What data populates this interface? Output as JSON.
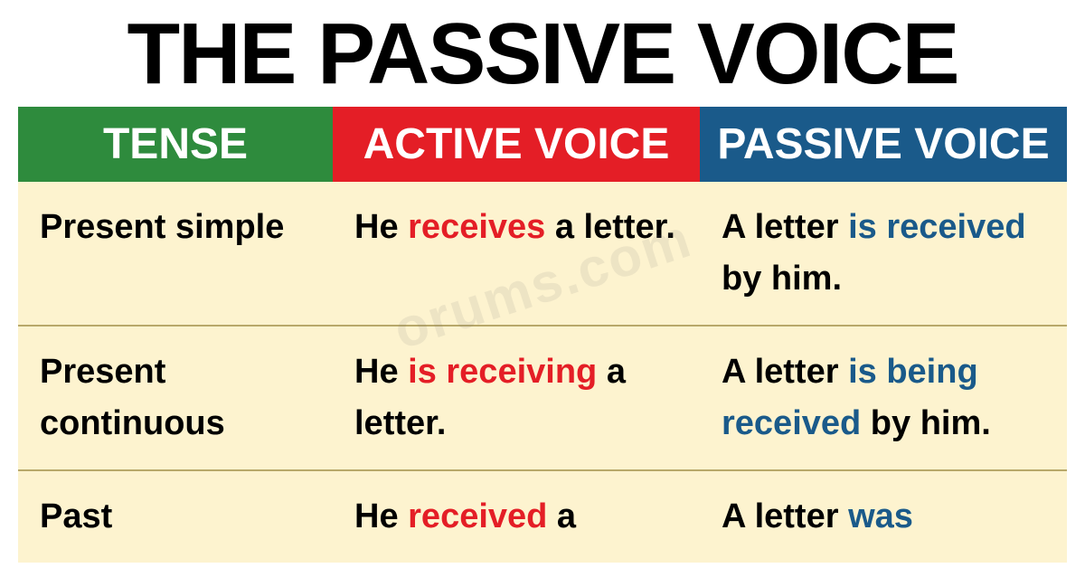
{
  "title": "THE PASSIVE VOICE",
  "headers": {
    "tense": "TENSE",
    "active": "ACTIVE VOICE",
    "passive": "PASSIVE VOICE"
  },
  "colors": {
    "tense_bg": "#2e8b3d",
    "active_bg": "#e41e26",
    "passive_bg": "#1a5a8a",
    "cell_bg": "#fdf3cf",
    "highlight_red": "#e41e26",
    "highlight_blue": "#1a5a8a",
    "text": "#000000",
    "header_text": "#ffffff",
    "divider": "#b8a86a"
  },
  "typography": {
    "title_fontsize": 96,
    "header_fontsize": 48,
    "cell_fontsize": 38,
    "font_family": "Arial Narrow",
    "font_weight": 900
  },
  "rows": [
    {
      "tense": "Present simple",
      "active_pre": "He ",
      "active_hl": "receives",
      "active_post": " a letter.",
      "passive_pre": "A letter ",
      "passive_hl": "is received",
      "passive_post": " by him."
    },
    {
      "tense": "Present continuous",
      "active_pre": "He ",
      "active_hl": "is receiving",
      "active_post": " a letter.",
      "passive_pre": "A letter ",
      "passive_hl": "is being received",
      "passive_post": " by him."
    },
    {
      "tense": "Past",
      "active_pre": "He ",
      "active_hl": "received",
      "active_post": " a",
      "passive_pre": "A letter ",
      "passive_hl": "was",
      "passive_post": ""
    }
  ],
  "watermark": "orums.com"
}
